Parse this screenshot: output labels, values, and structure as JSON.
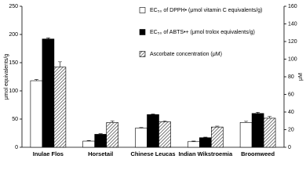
{
  "chart_data": {
    "type": "bar",
    "ylabel": "μmol equivalents/g",
    "y2label": "μM",
    "categories": [
      "Inulae Flos",
      "Horsetail",
      "Chinese Leucas",
      "Indian Wikstroemia",
      "Broomweed"
    ],
    "series": [
      {
        "name": "EC₅₀ of DPPH• (μmol vitamin C equivalents/g)",
        "color": "#ffffff",
        "values": [
          118,
          11,
          34,
          10,
          44
        ],
        "errors": [
          2,
          1,
          1,
          1,
          2
        ]
      },
      {
        "name": "EC₅₀ of ABTS•+ (μmol trolox equivalents/g)",
        "color": "#000000",
        "values": [
          192,
          23,
          58,
          17,
          60
        ],
        "errors": [
          2,
          1,
          1,
          1,
          2
        ]
      },
      {
        "name": "Ascorbate concentration (μM)",
        "color": "#888888",
        "pattern": "hatch",
        "axis": "y2",
        "values": [
          91,
          28,
          29,
          23,
          33
        ],
        "errors": [
          6,
          2,
          1,
          1,
          2
        ]
      }
    ],
    "ylim": [
      0,
      250
    ],
    "yticks": [
      0,
      50,
      100,
      150,
      200,
      250
    ],
    "y2lim": [
      0,
      160
    ],
    "y2ticks": [
      0,
      20,
      40,
      60,
      80,
      100,
      120,
      140,
      160
    ]
  }
}
